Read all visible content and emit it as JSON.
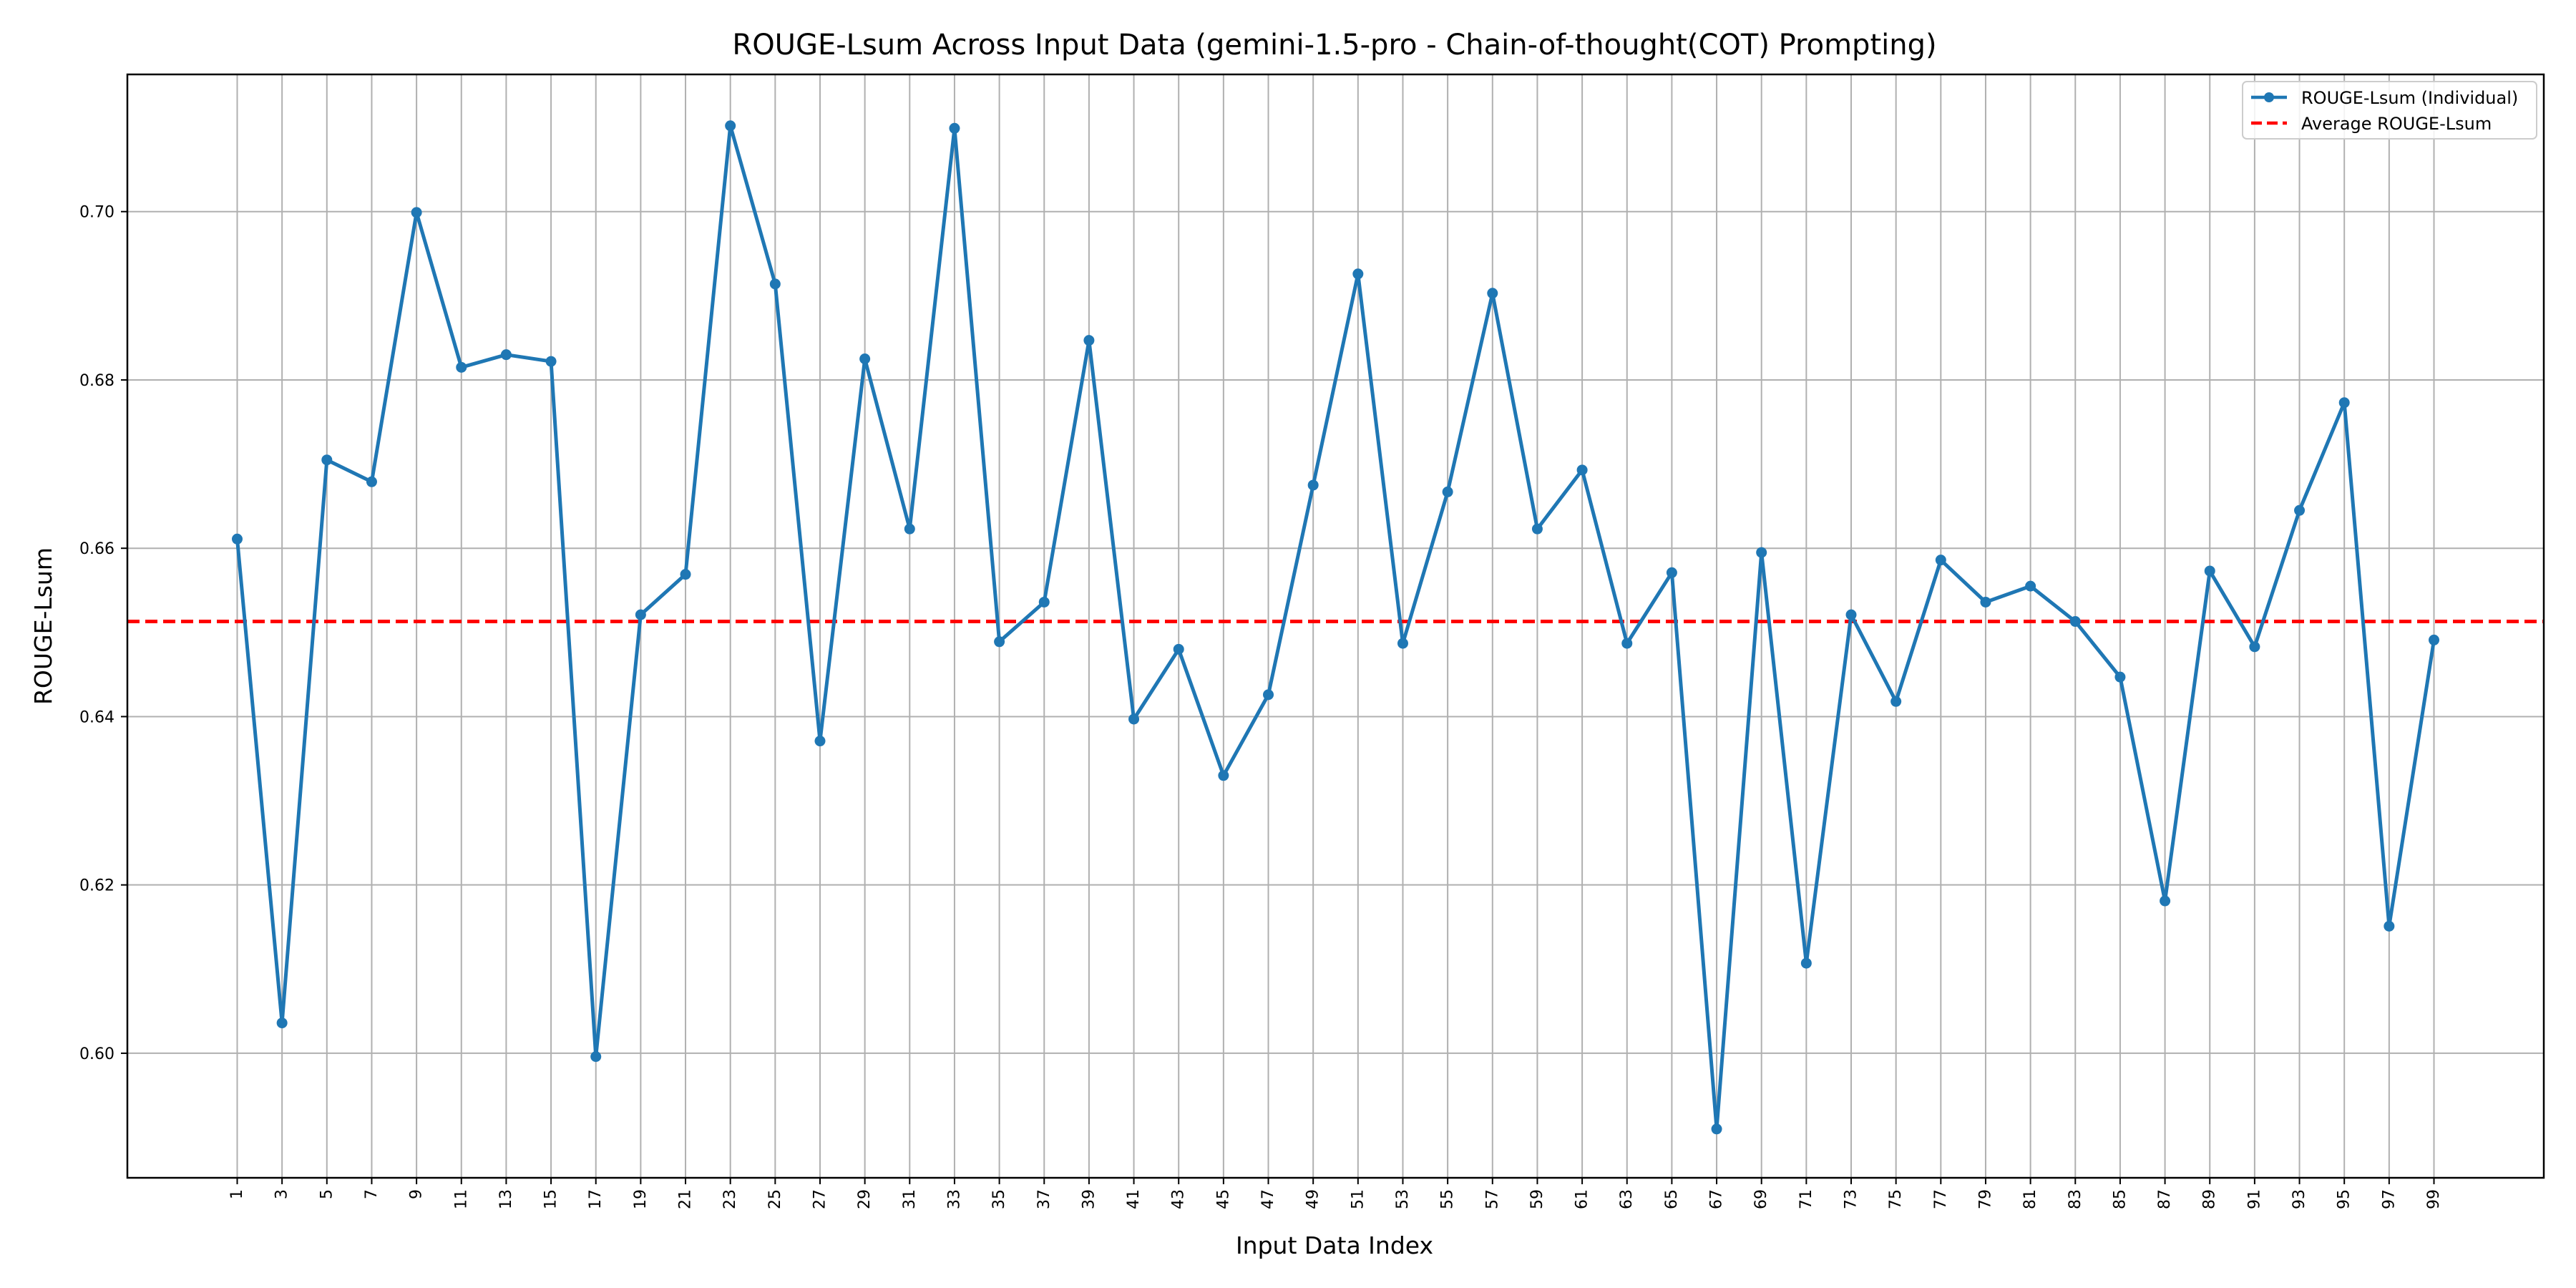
{
  "chart_data": {
    "type": "line",
    "title": "ROUGE-Lsum Across Input Data (gemini-1.5-pro - Chain-of-thought(COT) Prompting)",
    "xlabel": "Input Data Index",
    "ylabel": "ROUGE-Lsum",
    "x": [
      1,
      3,
      5,
      7,
      9,
      11,
      13,
      15,
      17,
      19,
      21,
      23,
      25,
      27,
      29,
      31,
      33,
      35,
      37,
      39,
      41,
      43,
      45,
      47,
      49,
      51,
      53,
      55,
      57,
      59,
      61,
      63,
      65,
      67,
      69,
      71,
      73,
      75,
      77,
      79,
      81,
      83,
      85,
      87,
      89,
      91,
      93,
      95,
      97,
      99
    ],
    "x_tick_labels": [
      "1",
      "3",
      "5",
      "7",
      "9",
      "11",
      "13",
      "15",
      "17",
      "19",
      "21",
      "23",
      "25",
      "27",
      "29",
      "31",
      "33",
      "35",
      "37",
      "39",
      "41",
      "43",
      "45",
      "47",
      "49",
      "51",
      "53",
      "55",
      "57",
      "59",
      "61",
      "63",
      "65",
      "67",
      "69",
      "71",
      "73",
      "75",
      "77",
      "79",
      "81",
      "83",
      "85",
      "87",
      "89",
      "91",
      "93",
      "95",
      "97",
      "99"
    ],
    "xlim": [
      -3.9,
      103.9
    ],
    "ylim": [
      0.5852,
      0.7163
    ],
    "y_ticks": [
      0.6,
      0.62,
      0.64,
      0.66,
      0.68,
      0.7
    ],
    "y_tick_labels": [
      "0.60",
      "0.62",
      "0.64",
      "0.66",
      "0.68",
      "0.70"
    ],
    "grid": true,
    "legend_position": "top-right",
    "series": [
      {
        "name": "ROUGE-Lsum (Individual)",
        "color": "#1f77b4",
        "style": "solid-with-markers",
        "values": [
          0.6611,
          0.6036,
          0.6705,
          0.6679,
          0.6999,
          0.6815,
          0.683,
          0.6822,
          0.5996,
          0.6521,
          0.6569,
          0.7102,
          0.6914,
          0.6371,
          0.6825,
          0.6623,
          0.7099,
          0.6489,
          0.6536,
          0.6847,
          0.6397,
          0.648,
          0.633,
          0.6426,
          0.6675,
          0.6926,
          0.6487,
          0.6667,
          0.6903,
          0.6623,
          0.6693,
          0.6487,
          0.6571,
          0.591,
          0.6595,
          0.6107,
          0.6521,
          0.6418,
          0.6586,
          0.6536,
          0.6555,
          0.6513,
          0.6447,
          0.6181,
          0.6573,
          0.6483,
          0.6645,
          0.6773,
          0.6151,
          0.6491
        ]
      },
      {
        "name": "Average ROUGE-Lsum",
        "color": "#ff0000",
        "style": "dashed",
        "value": 0.6513
      }
    ]
  }
}
